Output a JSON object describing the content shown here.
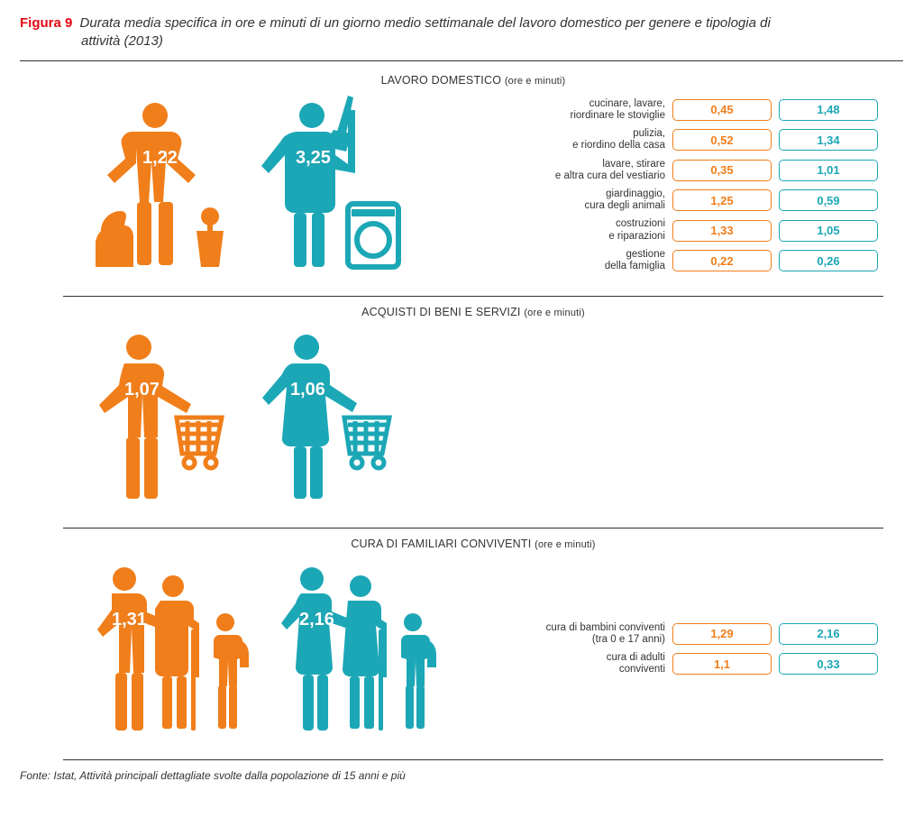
{
  "colors": {
    "male": "#f07e1a",
    "female": "#1ca7b6",
    "accent_red": "#e30613",
    "rule": "#333333",
    "bg": "#ffffff"
  },
  "figure_label": "Figura 9",
  "figure_title_1": "Durata media specifica in ore e minuti di un giorno medio settimanale del lavoro domestico per genere e tipologia di",
  "figure_title_2": "attività (2013)",
  "unit_suffix": "(ore e minuti)",
  "source": "Fonte: Istat, Attività principali dettagliate svolte dalla popolazione di 15 anni e più",
  "sections": [
    {
      "id": "domestic",
      "heading": "LAVORO DOMESTICO",
      "male_total": "1,22",
      "female_total": "3,25",
      "rows": [
        {
          "label": "cucinare, lavare,\nriordinare le stoviglie",
          "male": "0,45",
          "female": "1,48"
        },
        {
          "label": "pulizia,\ne riordino della casa",
          "male": "0,52",
          "female": "1,34"
        },
        {
          "label": "lavare, stirare\ne altra cura del vestiario",
          "male": "0,35",
          "female": "1,01"
        },
        {
          "label": "giardinaggio,\ncura degli animali",
          "male": "1,25",
          "female": "0,59"
        },
        {
          "label": "costruzioni\ne riparazioni",
          "male": "1,33",
          "female": "1,05"
        },
        {
          "label": "gestione\ndella famiglia",
          "male": "0,22",
          "female": "0,26"
        }
      ]
    },
    {
      "id": "shopping",
      "heading": "ACQUISTI DI BENI E SERVIZI",
      "male_total": "1,07",
      "female_total": "1,06",
      "rows": []
    },
    {
      "id": "care",
      "heading": "CURA DI FAMILIARI CONVIVENTI",
      "male_total": "1,31",
      "female_total": "2,16",
      "rows": [
        {
          "label": "cura di bambini conviventi\n(tra 0 e 17 anni)",
          "male": "1,29",
          "female": "2,16"
        },
        {
          "label": "cura di adulti\nconviventi",
          "male": "1,1",
          "female": "0,33"
        }
      ]
    }
  ]
}
